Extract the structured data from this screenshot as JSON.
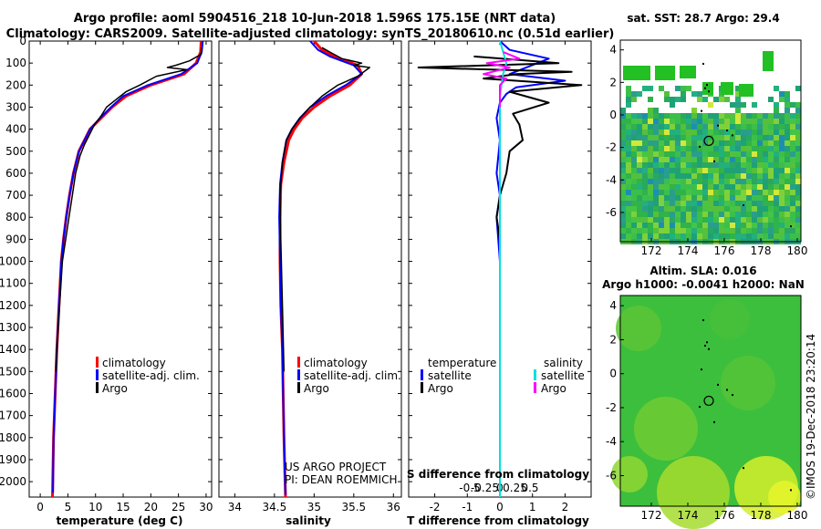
{
  "header": {
    "title_line1": "Argo profile: aoml 5904516_218 10-Jun-2018 1.596S 175.15E (NRT data)",
    "title_line2": "Climatology: CARS2009. Satellite-adjusted climatology: synTS_20180610.nc (0.51d earlier)"
  },
  "colors": {
    "climatology": "#ff0000",
    "satellite": "#0000ff",
    "argo": "#000000",
    "sal_satellite": "#00e0e0",
    "sal_argo": "#ff00ff"
  },
  "legends": {
    "temp": [
      "climatology",
      "satellite-adj. clim.",
      "Argo"
    ],
    "sal": [
      "climatology",
      "satellite-adj. clim.",
      "Argo"
    ],
    "diff_temperature_title": "temperature",
    "diff_salinity_title": "salinity",
    "diff_items": [
      "satellite",
      "Argo"
    ]
  },
  "credits": {
    "project": "US ARGO PROJECT",
    "pi": "PI: DEAN ROEMMICH",
    "imos": "©IMOS 19-Dec-2018 23:20:14"
  },
  "chart_data": [
    {
      "type": "line",
      "xlabel": "temperature (deg C)",
      "xlim": [
        -2,
        31
      ],
      "ylim": [
        0,
        2070
      ],
      "y_reversed": true,
      "xticks": [
        0,
        5,
        10,
        15,
        20,
        25,
        30
      ],
      "yticks": [
        0,
        100,
        200,
        300,
        400,
        500,
        600,
        700,
        800,
        900,
        1000,
        1100,
        1200,
        1300,
        1400,
        1500,
        1600,
        1700,
        1800,
        1900,
        2000
      ],
      "series": [
        {
          "name": "climatology",
          "x": [
            29.1,
            29.0,
            28.2,
            26.0,
            20.0,
            15.5,
            13.0,
            11.0,
            9.0,
            8.0,
            7.0,
            6.0,
            5.3,
            4.7,
            4.2,
            3.8,
            3.4,
            3.0,
            2.7,
            2.4,
            2.2
          ],
          "y": [
            0,
            50,
            100,
            150,
            200,
            250,
            300,
            350,
            400,
            450,
            500,
            600,
            700,
            800,
            900,
            1000,
            1200,
            1400,
            1600,
            1800,
            2070
          ]
        },
        {
          "name": "satellite-adj. clim.",
          "x": [
            29.4,
            29.2,
            28.4,
            25.5,
            19.5,
            15.0,
            12.8,
            10.8,
            9.0,
            8.0,
            7.0,
            6.0,
            5.3,
            4.7,
            4.2,
            3.8,
            3.4,
            3.0,
            2.7,
            2.4,
            2.3
          ],
          "y": [
            0,
            50,
            100,
            150,
            200,
            250,
            300,
            350,
            400,
            450,
            500,
            600,
            700,
            800,
            900,
            1000,
            1200,
            1400,
            1600,
            1800,
            2050
          ]
        },
        {
          "name": "Argo",
          "x": [
            29.2,
            29.1,
            27.0,
            24.5,
            23.0,
            26.5,
            21.0,
            18.0,
            15.5,
            13.5,
            12.0,
            11.0,
            9.8,
            9.0,
            8.0,
            7.2,
            6.4,
            5.8,
            5.2,
            4.6,
            4.0,
            3.5,
            3.0,
            2.8
          ],
          "y": [
            30,
            60,
            90,
            110,
            120,
            130,
            160,
            200,
            230,
            270,
            300,
            340,
            380,
            420,
            470,
            520,
            600,
            700,
            800,
            900,
            1000,
            1200,
            1400,
            1500
          ]
        }
      ]
    },
    {
      "type": "line",
      "xlabel": "salinity",
      "xlim": [
        33.8,
        36.1
      ],
      "ylim": [
        0,
        2070
      ],
      "y_reversed": true,
      "xticks": [
        34,
        34.5,
        35,
        35.5,
        36
      ],
      "series": [
        {
          "name": "climatology",
          "x": [
            35.0,
            35.1,
            35.25,
            35.55,
            35.6,
            35.45,
            35.2,
            35.0,
            34.85,
            34.75,
            34.68,
            34.62,
            34.58,
            34.57,
            34.57,
            34.58,
            34.6,
            34.61,
            34.62,
            34.63,
            34.64
          ],
          "y": [
            0,
            40,
            70,
            110,
            150,
            200,
            250,
            300,
            350,
            400,
            450,
            550,
            650,
            800,
            1000,
            1200,
            1400,
            1600,
            1800,
            1950,
            2070
          ]
        },
        {
          "name": "satellite-adj. clim.",
          "x": [
            34.95,
            35.05,
            35.2,
            35.5,
            35.6,
            35.4,
            35.15,
            34.95,
            34.82,
            34.72,
            34.65,
            34.6,
            34.57,
            34.56,
            34.57,
            34.58,
            34.6,
            34.61,
            34.62,
            34.63,
            34.64
          ],
          "y": [
            0,
            40,
            70,
            110,
            150,
            200,
            250,
            300,
            350,
            400,
            450,
            550,
            650,
            800,
            1000,
            1200,
            1400,
            1600,
            1800,
            1950,
            2060
          ]
        },
        {
          "name": "Argo",
          "x": [
            35.1,
            35.2,
            35.35,
            35.6,
            35.5,
            35.7,
            35.55,
            35.3,
            35.1,
            34.95,
            34.82,
            34.72,
            34.65,
            34.6,
            34.57,
            34.58,
            34.6,
            34.62
          ],
          "y": [
            30,
            50,
            80,
            100,
            110,
            120,
            160,
            200,
            250,
            300,
            350,
            400,
            450,
            550,
            700,
            900,
            1200,
            1500
          ]
        }
      ]
    },
    {
      "type": "line",
      "xlabel": "T difference from climatology",
      "xlabel2": "S difference from climatology",
      "xlim": [
        -2.8,
        2.8
      ],
      "ylim": [
        0,
        2070
      ],
      "y_reversed": true,
      "xticks": [
        -2,
        -1,
        0,
        1,
        2
      ],
      "xticks_S": [
        "-0.5",
        "-0.25",
        "0",
        "0.25",
        "0.5"
      ],
      "series": [
        {
          "name": "temperature satellite",
          "x": [
            0.0,
            0.3,
            1.5,
            0.3,
            2.0,
            0.5,
            0.2,
            0.0,
            -0.1,
            0.0,
            -0.1,
            0.0,
            -0.1,
            0.0,
            0.0
          ],
          "y": [
            0,
            40,
            80,
            150,
            180,
            210,
            240,
            280,
            350,
            450,
            600,
            700,
            800,
            1000,
            2070
          ]
        },
        {
          "name": "temperature Argo",
          "x": [
            -0.8,
            0.5,
            1.8,
            -2.5,
            2.2,
            0.5,
            -0.5,
            2.5,
            0.3,
            1.5,
            0.4,
            0.6,
            0.7,
            0.3,
            0.2,
            0.0,
            -0.1,
            0.0
          ],
          "y": [
            70,
            85,
            100,
            120,
            140,
            150,
            170,
            200,
            230,
            280,
            330,
            380,
            450,
            500,
            600,
            700,
            800,
            900
          ]
        },
        {
          "name": "salinity satellite",
          "x": [
            0.0,
            0.1,
            0.2,
            0.1,
            0.0,
            0.0,
            0.0,
            0.0
          ],
          "y": [
            0,
            50,
            100,
            150,
            250,
            500,
            1000,
            2070
          ]
        },
        {
          "name": "salinity Argo",
          "x": [
            0.1,
            0.6,
            -0.4,
            0.3,
            -0.5,
            0.2,
            0.0,
            0.0
          ],
          "y": [
            50,
            80,
            100,
            120,
            150,
            170,
            200,
            300
          ]
        }
      ]
    },
    {
      "type": "heatmap",
      "title": "sat. SST: 28.7 Argo: 29.4",
      "xticks": [
        172,
        174,
        176,
        178,
        180
      ],
      "yticks": [
        4,
        2,
        0,
        -2,
        -4,
        -6
      ],
      "xlim": [
        170.3,
        180.2
      ],
      "ylim": [
        -7.8,
        4.6
      ],
      "marker": {
        "lon": 175.15,
        "lat": -1.596
      }
    },
    {
      "type": "heatmap",
      "title": "Altim. SLA: 0.016",
      "title2": "Argo h1000: -0.0041 h2000: NaN",
      "xticks": [
        172,
        174,
        176,
        178,
        180
      ],
      "yticks": [
        4,
        2,
        0,
        -2,
        -4,
        -6
      ],
      "xlim": [
        170.3,
        180.2
      ],
      "ylim": [
        -7.8,
        4.6
      ],
      "marker": {
        "lon": 175.15,
        "lat": -1.596
      }
    }
  ]
}
